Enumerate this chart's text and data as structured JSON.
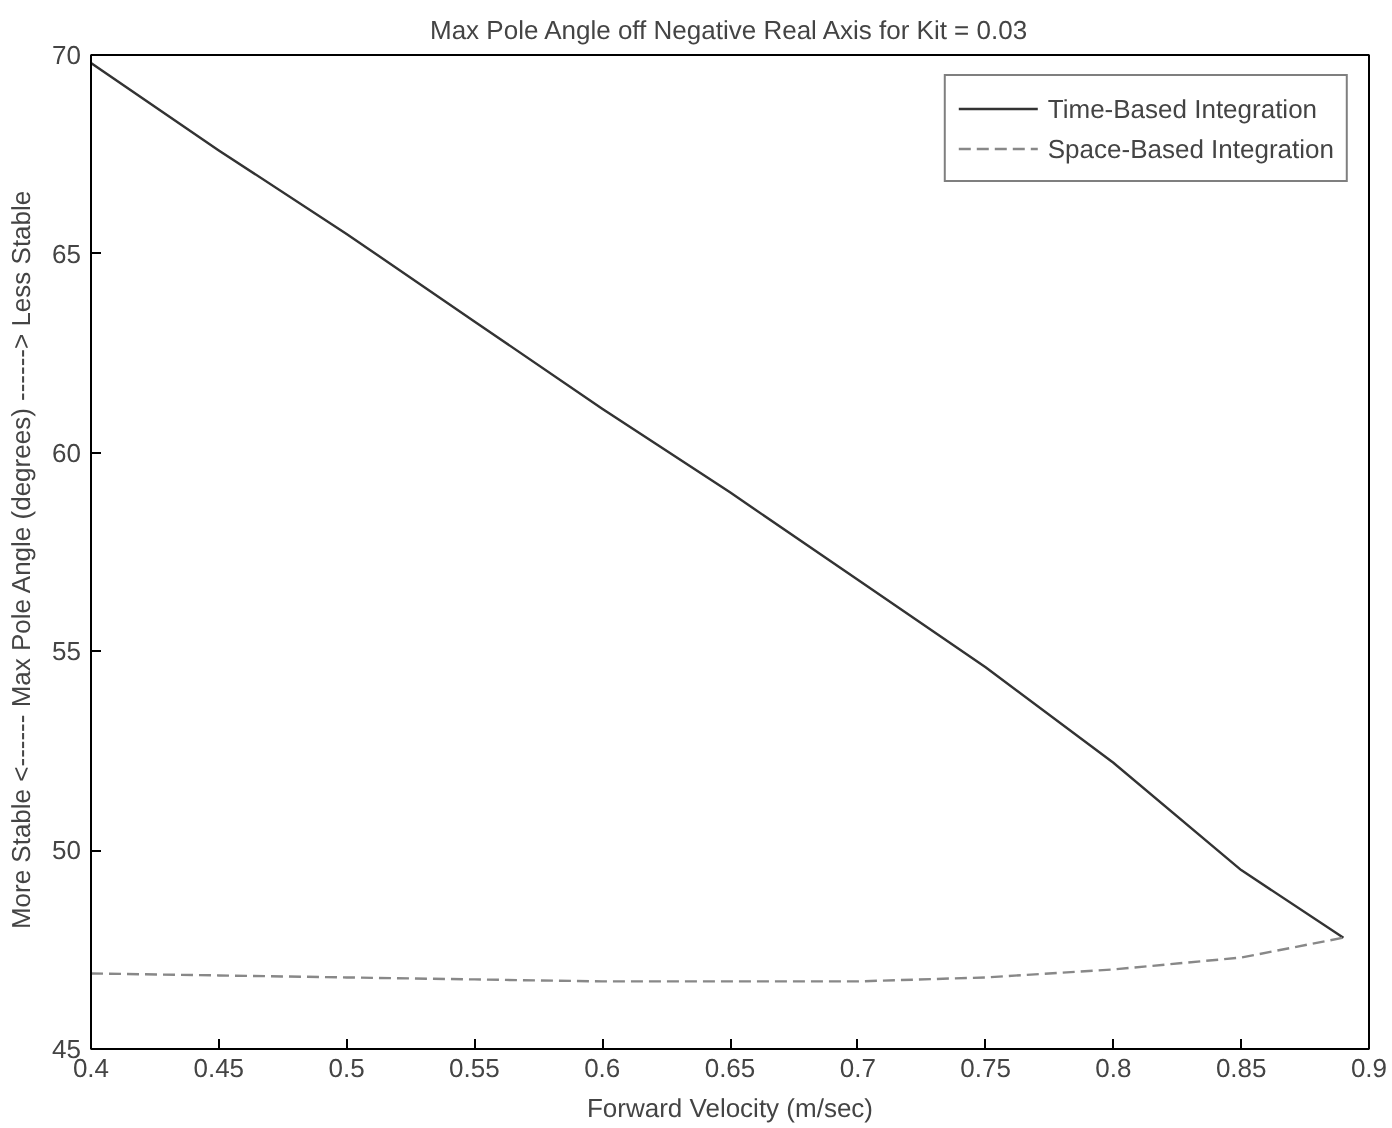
{
  "chart_data": {
    "type": "line",
    "title": "Max Pole Angle off Negative Real Axis for Kit = 0.03",
    "xlabel": "Forward Velocity (m/sec)",
    "ylabel": "More Stable <------  Max Pole Angle (degrees)  ------> Less Stable",
    "x": [
      0.4,
      0.45,
      0.5,
      0.55,
      0.6,
      0.65,
      0.7,
      0.75,
      0.8,
      0.85,
      0.89
    ],
    "series": [
      {
        "name": "Time-Based Integration",
        "color": "#333333",
        "line_style": "solid",
        "values": [
          69.8,
          67.6,
          65.5,
          63.3,
          61.1,
          59.0,
          56.8,
          54.6,
          52.2,
          49.5,
          47.8
        ]
      },
      {
        "name": "Space-Based Integration",
        "color": "#888888",
        "line_style": "dashed",
        "values": [
          46.9,
          46.85,
          46.8,
          46.75,
          46.7,
          46.7,
          46.7,
          46.8,
          47.0,
          47.3,
          47.8
        ]
      }
    ],
    "xlim": [
      0.4,
      0.9
    ],
    "xticks": [
      0.4,
      0.45,
      0.5,
      0.55,
      0.6,
      0.65,
      0.7,
      0.75,
      0.8,
      0.85,
      0.9
    ],
    "ylim": [
      45,
      70
    ],
    "yticks": [
      45,
      50,
      55,
      60,
      65,
      70
    ],
    "grid": false,
    "legend": "top right",
    "marker": "none"
  }
}
